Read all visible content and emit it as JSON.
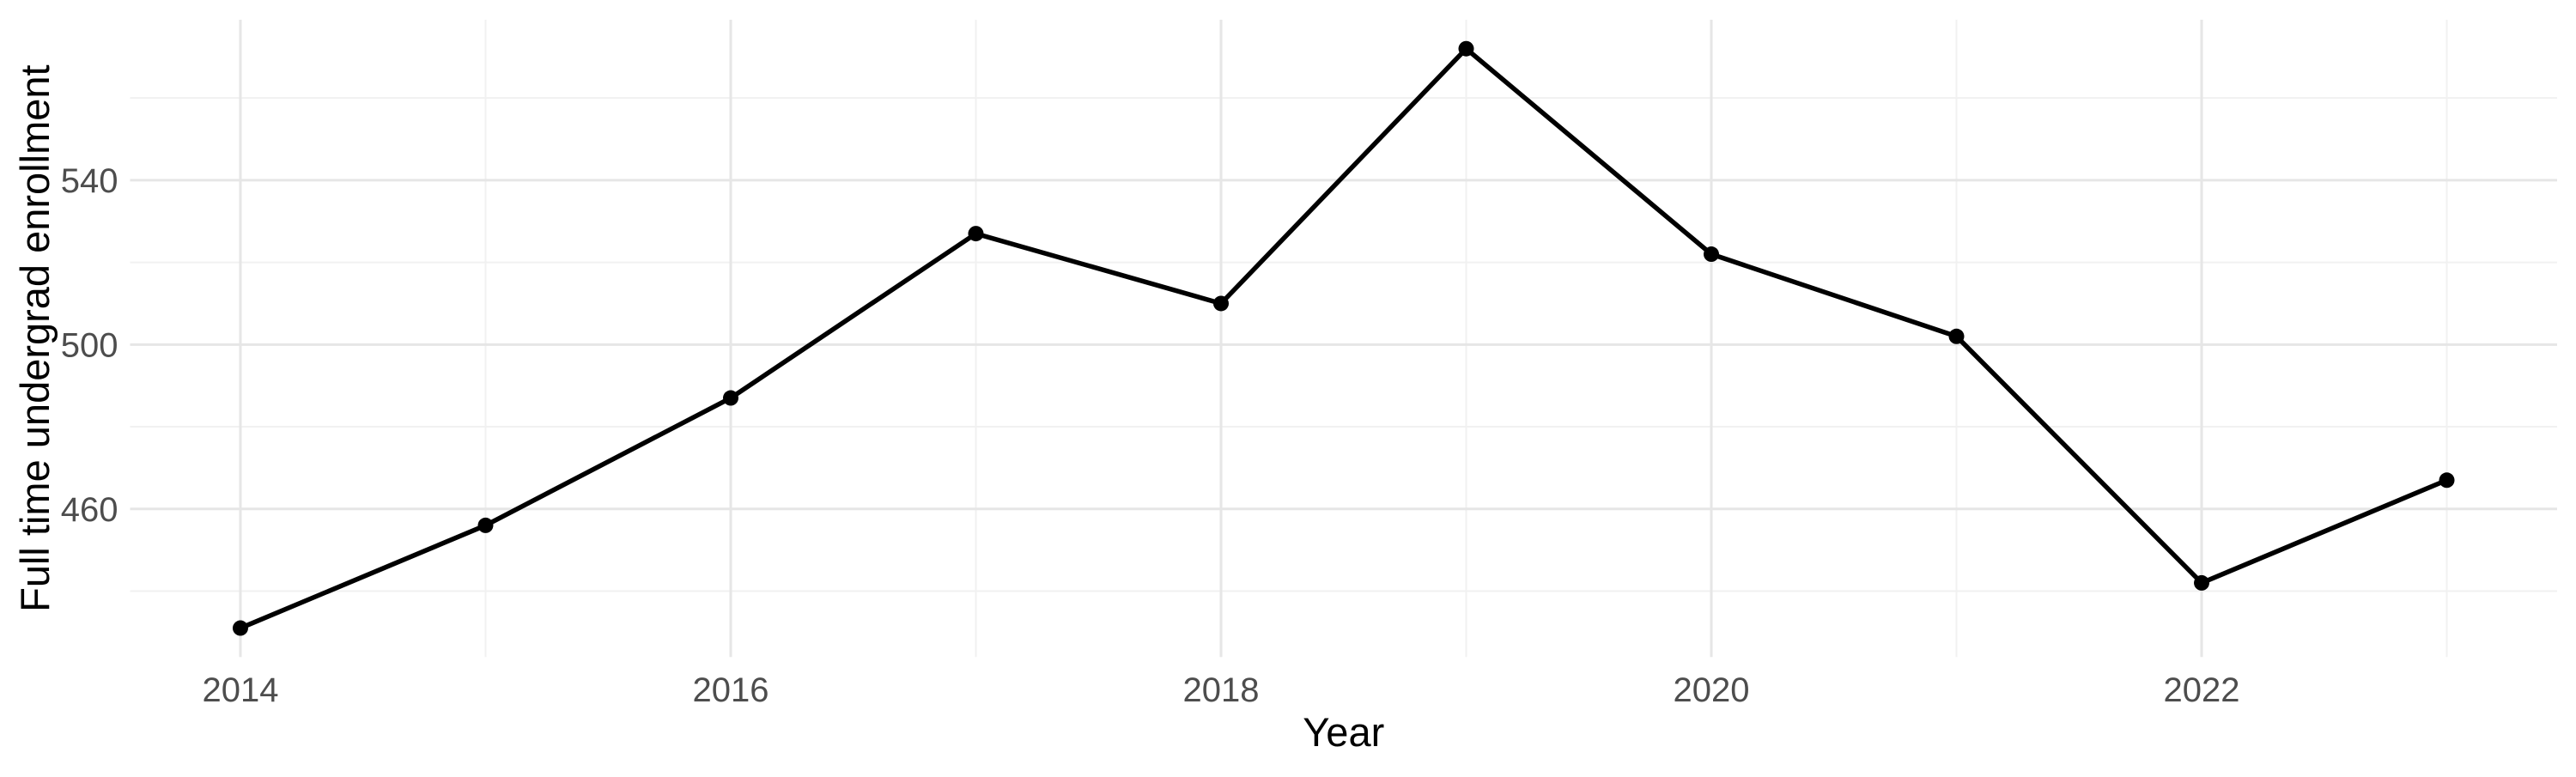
{
  "chart_data": {
    "type": "line",
    "title": "",
    "xlabel": "Year",
    "ylabel": "Full time undergrad enrollment",
    "x": [
      2014,
      2015,
      2016,
      2017,
      2018,
      2019,
      2020,
      2021,
      2022,
      2023
    ],
    "series": [
      {
        "name": "Full time undergrad enrollment",
        "values": [
          431,
          456,
          487,
          527,
          510,
          572,
          522,
          502,
          442,
          467
        ]
      }
    ],
    "x_major_ticks": [
      2014,
      2016,
      2018,
      2020,
      2022
    ],
    "x_minor_gridlines": [
      2015,
      2017,
      2019,
      2021,
      2023
    ],
    "y_major_ticks": [
      460,
      500,
      540
    ],
    "y_minor_gridlines": [
      440,
      480,
      520,
      560
    ],
    "xlim": [
      2013.55,
      2023.45
    ],
    "ylim": [
      423.95,
      579.05
    ],
    "grid": "on",
    "legend": "none",
    "marker": "point",
    "colors": {
      "line": "#000000",
      "point": "#000000",
      "grid_major": "#e6e6e6",
      "grid_minor": "#f1f1f1",
      "tick_label": "#4d4d4d",
      "axis_title": "#000000",
      "background": "#ffffff"
    }
  }
}
